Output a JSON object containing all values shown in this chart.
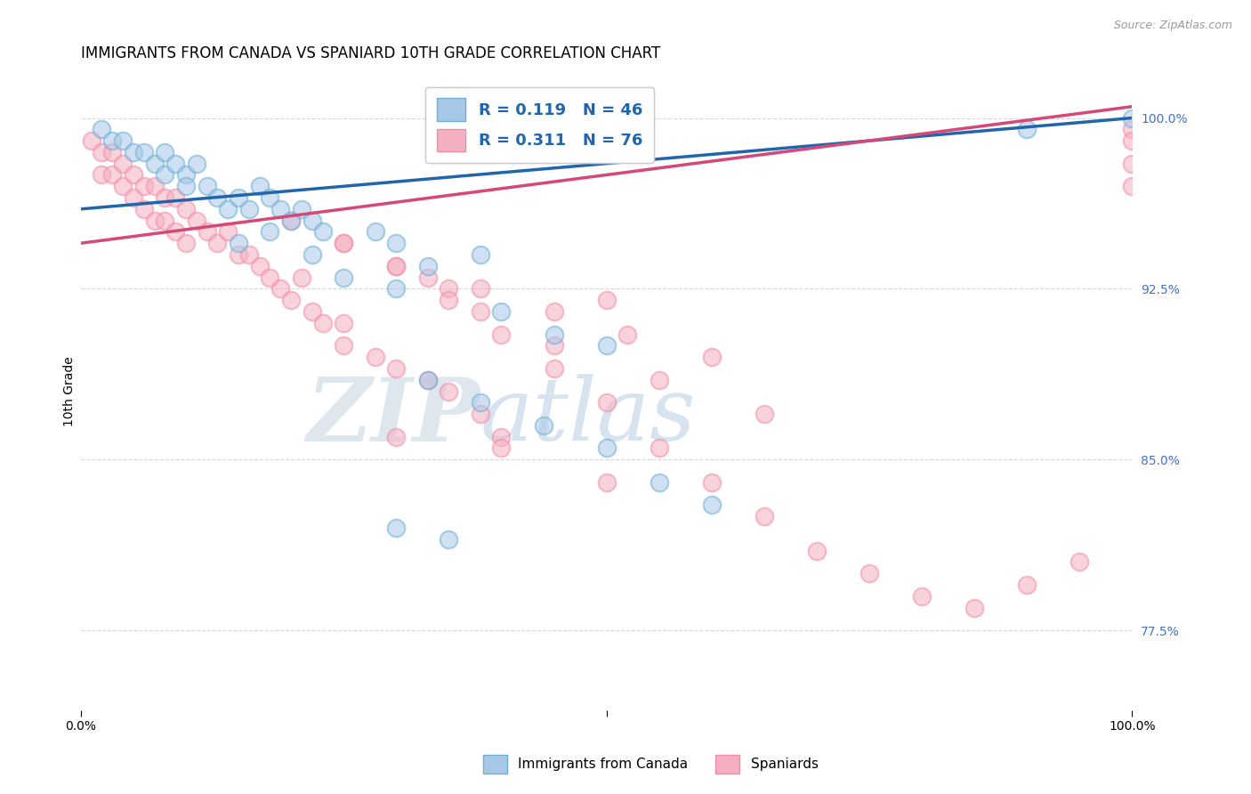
{
  "title": "IMMIGRANTS FROM CANADA VS SPANIARD 10TH GRADE CORRELATION CHART",
  "source_text": "Source: ZipAtlas.com",
  "ylabel": "10th Grade",
  "y_ticks_right": [
    77.5,
    85.0,
    92.5,
    100.0
  ],
  "y_tick_labels_right": [
    "77.5%",
    "85.0%",
    "92.5%",
    "100.0%"
  ],
  "xlim": [
    0,
    100
  ],
  "ylim": [
    74,
    102
  ],
  "blue_R": 0.119,
  "blue_N": 46,
  "pink_R": 0.311,
  "pink_N": 76,
  "blue_color": "#a8c8e8",
  "pink_color": "#f4b0c0",
  "blue_edge_color": "#6baed6",
  "pink_edge_color": "#f48aaa",
  "blue_line_color": "#2166ac",
  "pink_line_color": "#d64878",
  "legend_label_blue": "Immigrants from Canada",
  "legend_label_pink": "Spaniards",
  "blue_line_x0": 0,
  "blue_line_x1": 100,
  "blue_line_y0": 96.0,
  "blue_line_y1": 100.0,
  "pink_line_y0": 94.5,
  "pink_line_y1": 100.5,
  "blue_points_x": [
    2,
    3,
    4,
    5,
    6,
    7,
    8,
    8,
    9,
    10,
    10,
    11,
    12,
    13,
    14,
    15,
    16,
    17,
    18,
    19,
    20,
    21,
    22,
    23,
    15,
    18,
    22,
    28,
    30,
    33,
    38,
    25,
    30,
    40,
    45,
    50,
    33,
    38,
    44,
    50,
    55,
    60,
    30,
    35,
    90,
    100
  ],
  "blue_points_y": [
    99.5,
    99.0,
    99.0,
    98.5,
    98.5,
    98.0,
    98.5,
    97.5,
    98.0,
    97.5,
    97.0,
    98.0,
    97.0,
    96.5,
    96.0,
    96.5,
    96.0,
    97.0,
    96.5,
    96.0,
    95.5,
    96.0,
    95.5,
    95.0,
    94.5,
    95.0,
    94.0,
    95.0,
    94.5,
    93.5,
    94.0,
    93.0,
    92.5,
    91.5,
    90.5,
    90.0,
    88.5,
    87.5,
    86.5,
    85.5,
    84.0,
    83.0,
    82.0,
    81.5,
    99.5,
    100.0
  ],
  "pink_points_x": [
    1,
    2,
    2,
    3,
    3,
    4,
    4,
    5,
    5,
    6,
    6,
    7,
    7,
    8,
    8,
    9,
    9,
    10,
    10,
    11,
    12,
    13,
    14,
    15,
    16,
    17,
    18,
    19,
    20,
    21,
    22,
    23,
    25,
    25,
    28,
    30,
    33,
    35,
    38,
    40,
    33,
    38,
    50,
    45,
    52,
    60,
    30,
    40,
    50,
    25,
    30,
    35,
    38,
    45,
    55,
    65,
    20,
    25,
    30,
    35,
    40,
    45,
    50,
    55,
    60,
    65,
    70,
    75,
    80,
    85,
    90,
    95,
    100,
    100,
    100,
    100
  ],
  "pink_points_y": [
    99.0,
    98.5,
    97.5,
    98.5,
    97.5,
    98.0,
    97.0,
    97.5,
    96.5,
    97.0,
    96.0,
    97.0,
    95.5,
    96.5,
    95.5,
    96.5,
    95.0,
    96.0,
    94.5,
    95.5,
    95.0,
    94.5,
    95.0,
    94.0,
    94.0,
    93.5,
    93.0,
    92.5,
    92.0,
    93.0,
    91.5,
    91.0,
    91.0,
    90.0,
    89.5,
    89.0,
    88.5,
    88.0,
    87.0,
    86.0,
    93.0,
    92.5,
    92.0,
    91.5,
    90.5,
    89.5,
    86.0,
    85.5,
    84.0,
    94.5,
    93.5,
    92.5,
    91.5,
    90.0,
    88.5,
    87.0,
    95.5,
    94.5,
    93.5,
    92.0,
    90.5,
    89.0,
    87.5,
    85.5,
    84.0,
    82.5,
    81.0,
    80.0,
    79.0,
    78.5,
    79.5,
    80.5,
    99.5,
    99.0,
    98.0,
    97.0
  ],
  "watermark_zip": "ZIP",
  "watermark_atlas": "atlas",
  "background_color": "#ffffff",
  "grid_color": "#cccccc",
  "title_fontsize": 12,
  "axis_label_fontsize": 10,
  "tick_fontsize": 10,
  "right_tick_color": "#4472c4"
}
